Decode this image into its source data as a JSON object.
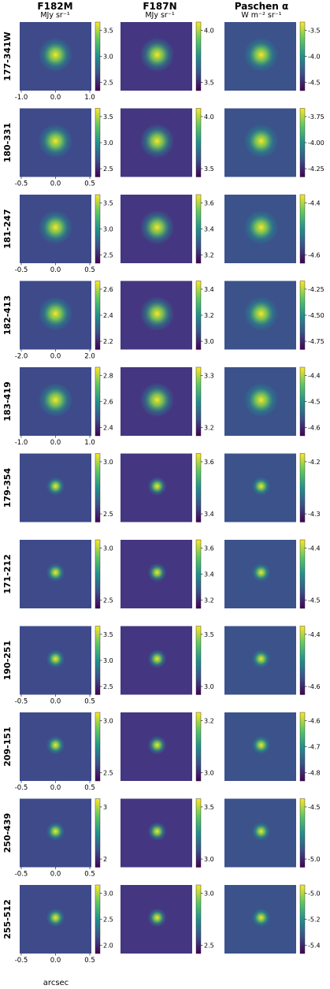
{
  "chart_data": {
    "type": "heatmap",
    "columns": [
      {
        "title": "F182M",
        "unit": "MJy sr⁻¹"
      },
      {
        "title": "F187N",
        "unit": "MJy sr⁻¹"
      },
      {
        "title": "Paschen α",
        "unit": "W m⁻² sr⁻¹"
      }
    ],
    "xlabel": "arcsec",
    "rows": [
      {
        "label": "177-341W",
        "xticks": [
          "-1.0",
          "0.0",
          "1.0"
        ],
        "colorbars": [
          [
            "2.5",
            "3.0",
            "3.5"
          ],
          [
            "3.5",
            "4.0"
          ],
          [
            "-4.0",
            "-4.5",
            "-3.5"
          ]
        ]
      },
      {
        "label": "180-331",
        "xticks": [
          "-0.5",
          "0.0",
          "0.5"
        ],
        "colorbars": [
          [
            "2.5",
            "3.0",
            "3.5"
          ],
          [
            "3.5",
            "4.0"
          ],
          [
            "-3.75",
            "-4.00",
            "-4.25"
          ]
        ]
      },
      {
        "label": "181-247",
        "xticks": [
          "-0.5",
          "0.0",
          "0.5"
        ],
        "colorbars": [
          [
            "2.5",
            "3.0",
            "3.5"
          ],
          [
            "3.2",
            "3.4",
            "3.6"
          ],
          [
            "-4.4",
            "-4.6"
          ]
        ]
      },
      {
        "label": "182-413",
        "xticks": [
          "-2.0",
          "0.0",
          "2.0"
        ],
        "colorbars": [
          [
            "2.2",
            "2.4",
            "2.6"
          ],
          [
            "3.0",
            "3.2",
            "3.4"
          ],
          [
            "-4.25",
            "-4.50",
            "-4.75"
          ]
        ]
      },
      {
        "label": "183-419",
        "xticks": [
          "-1.0",
          "0.0",
          "1.0"
        ],
        "colorbars": [
          [
            "2.4",
            "2.6",
            "2.8"
          ],
          [
            "3.2",
            "3.3"
          ],
          [
            "-4.4",
            "-4.5",
            "-4.6"
          ]
        ]
      },
      {
        "label": "179-354",
        "xticks": [
          "-0.5",
          "0.0",
          "0.5"
        ],
        "colorbars": [
          [
            "2.5",
            "3.0"
          ],
          [
            "3.4",
            "3.6"
          ],
          [
            "-4.2",
            "-4.3"
          ]
        ]
      },
      {
        "label": "171-212",
        "xticks": [
          "-0.5",
          "0.0",
          "0.5"
        ],
        "colorbars": [
          [
            "2.5",
            "3.0"
          ],
          [
            "3.2",
            "3.4",
            "3.6"
          ],
          [
            "-4.4",
            "-4.5"
          ]
        ]
      },
      {
        "label": "190-251",
        "xticks": [
          "-0.5",
          "0.0",
          "0.5"
        ],
        "colorbars": [
          [
            "2.5",
            "3.0",
            "3.5"
          ],
          [
            "3.0",
            "3.5"
          ],
          [
            "-4.4",
            "-4.6"
          ]
        ]
      },
      {
        "label": "209-151",
        "xticks": [
          "-0.5",
          "0.0",
          "0.5"
        ],
        "colorbars": [
          [
            "2.5",
            "3.0"
          ],
          [
            "3.0",
            "3.2"
          ],
          [
            "-4.6",
            "-4.7",
            "-4.8"
          ]
        ]
      },
      {
        "label": "250-439",
        "xticks": [
          "-0.5",
          "0.0",
          "0.5"
        ],
        "colorbars": [
          [
            "2",
            "3"
          ],
          [
            "3.0",
            "3.5"
          ],
          [
            "-4.5",
            "-5.0"
          ]
        ]
      },
      {
        "label": "255-512",
        "xticks": [
          "-0.5",
          "0.0",
          "0.5"
        ],
        "colorbars": [
          [
            "2.0",
            "2.5",
            "3.0"
          ],
          [
            "2.5",
            "3.0"
          ],
          [
            "-5.0",
            "-5.2",
            "-5.4"
          ]
        ]
      }
    ],
    "colormap": "viridis",
    "colors": {
      "low": "#440154",
      "mid": "#21918c",
      "high": "#fde725"
    }
  }
}
